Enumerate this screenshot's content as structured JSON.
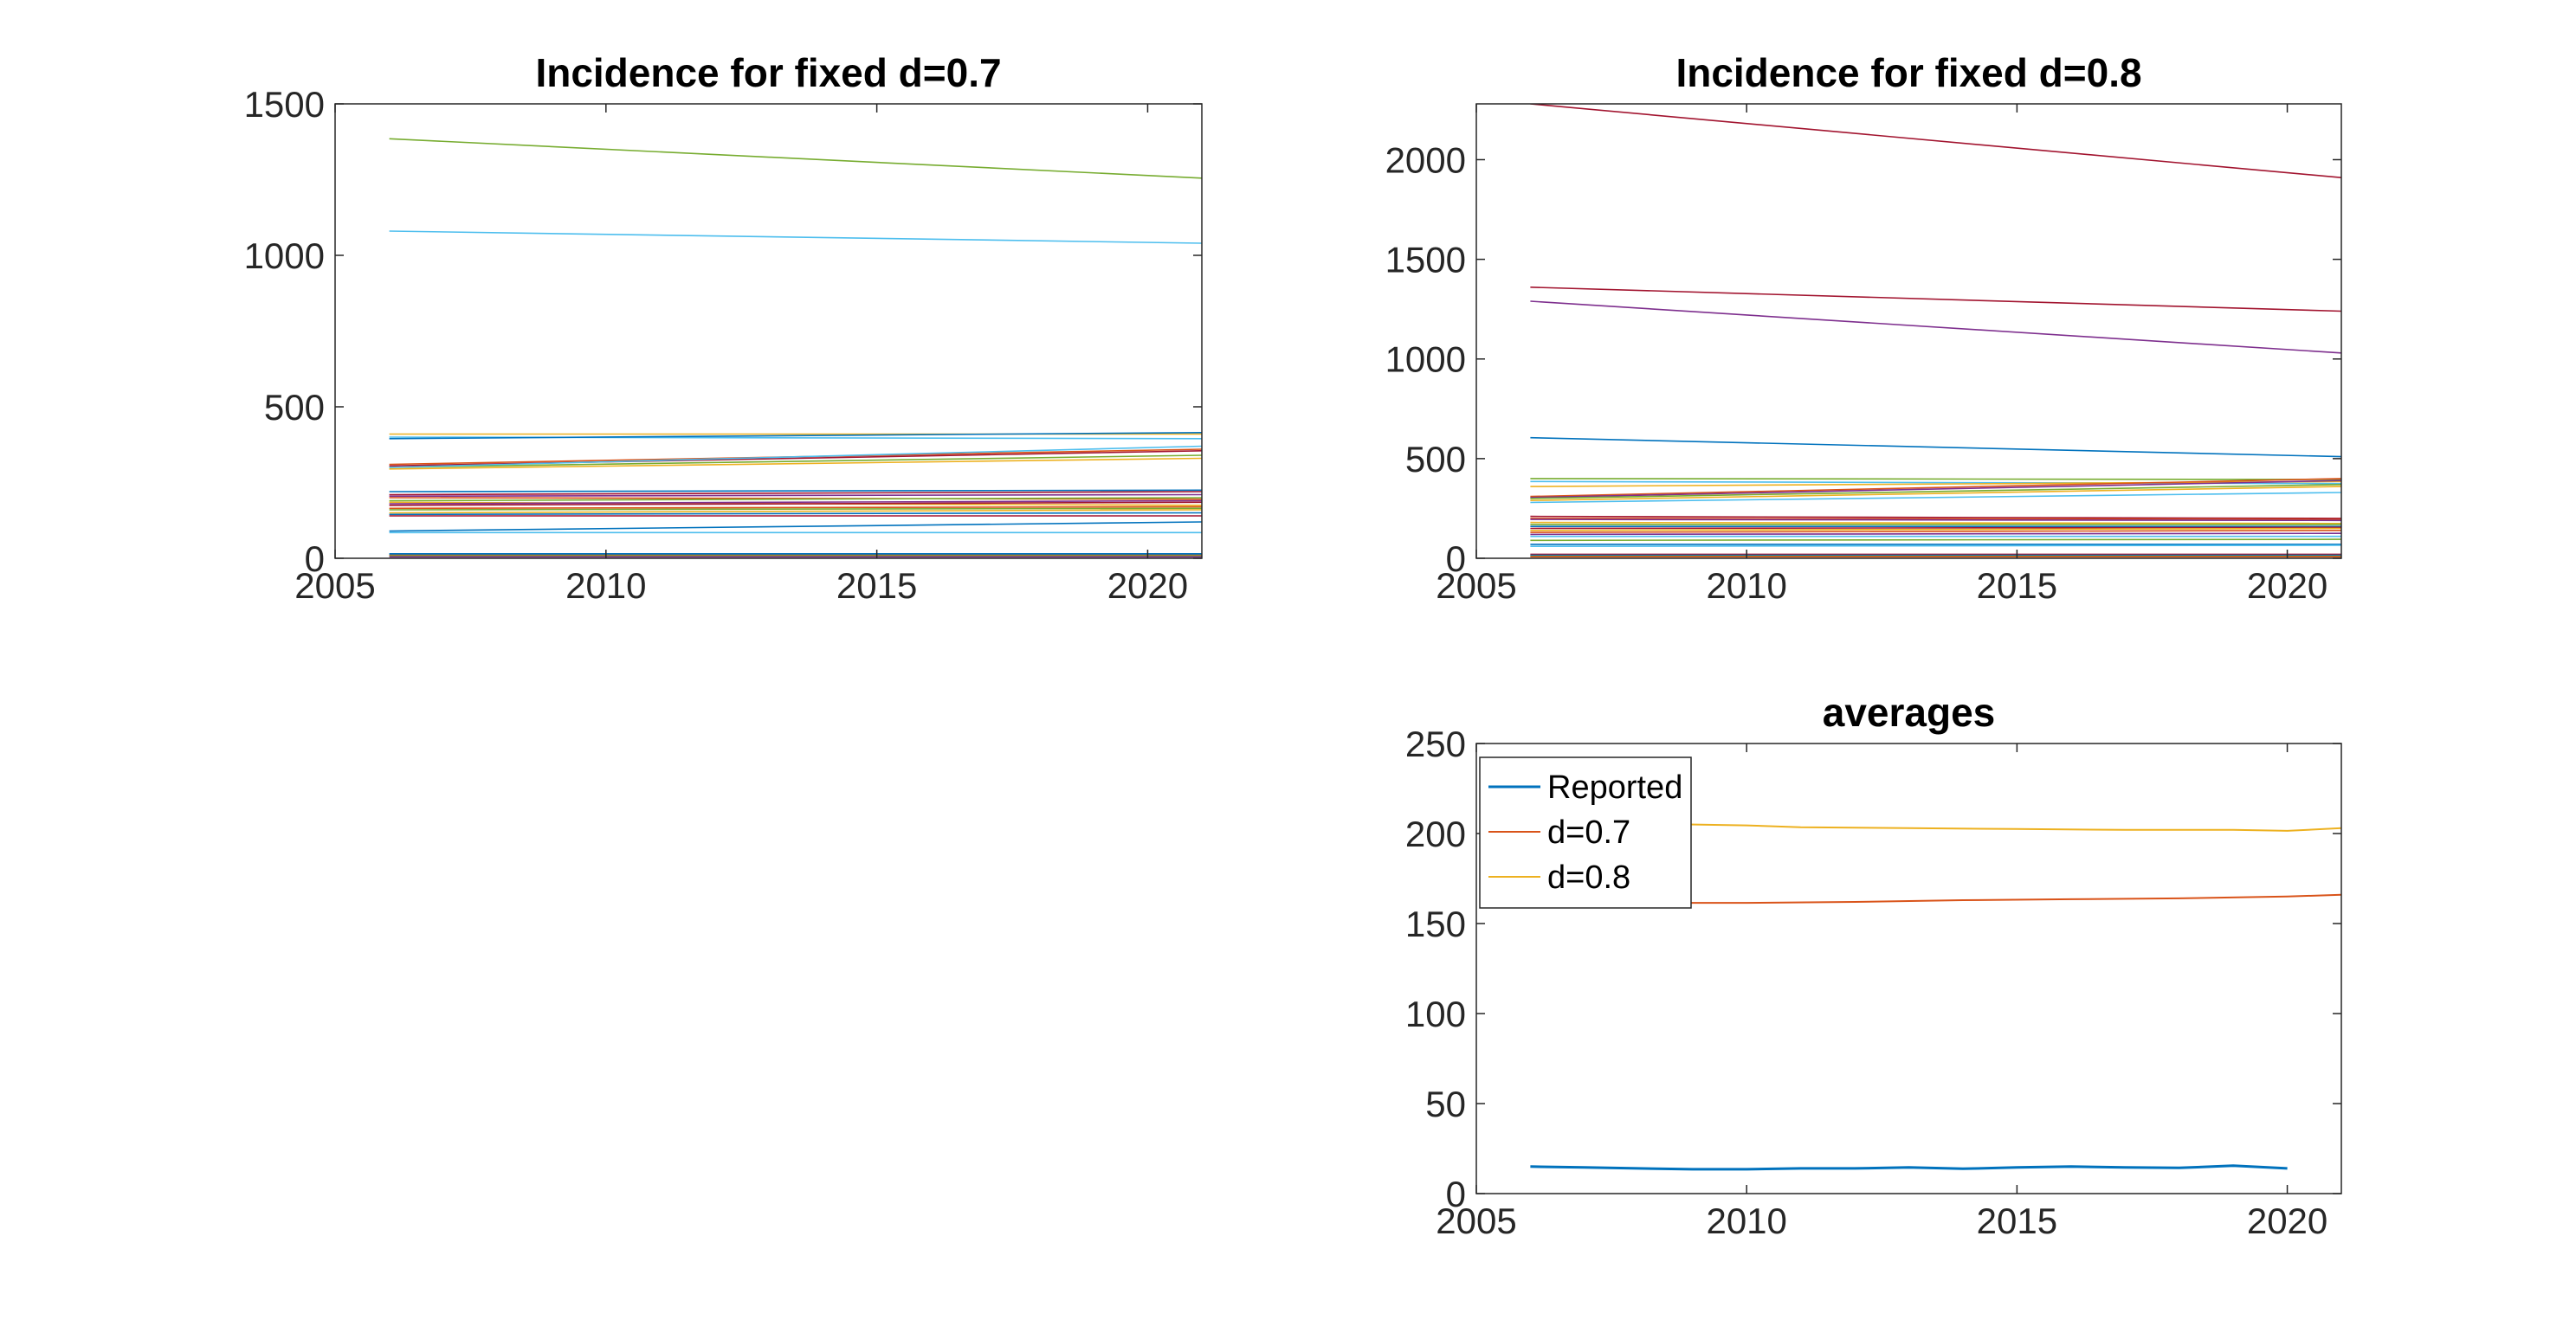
{
  "figure": {
    "background": "#ffffff",
    "axis_color": "#262626",
    "palette": [
      "#0072BD",
      "#D95319",
      "#EDB120",
      "#7E2F8E",
      "#77AC30",
      "#4DBEEE",
      "#A2142F"
    ]
  },
  "chart_data": [
    {
      "id": "p1",
      "type": "line",
      "title": "Incidence for fixed d=0.7",
      "xlabel": "",
      "ylabel": "",
      "xlim": [
        2005,
        2021
      ],
      "ylim": [
        0,
        1500
      ],
      "xticks": [
        2005,
        2010,
        2015,
        2020
      ],
      "yticks": [
        0,
        500,
        1000,
        1500
      ],
      "grid": false,
      "x": [
        2006,
        2021
      ],
      "series": [
        {
          "color": "#77AC30",
          "values": [
            1385,
            1255
          ]
        },
        {
          "color": "#4DBEEE",
          "values": [
            1080,
            1040
          ]
        },
        {
          "color": "#EDB120",
          "values": [
            410,
            410
          ]
        },
        {
          "color": "#4DBEEE",
          "values": [
            400,
            395
          ]
        },
        {
          "color": "#0072BD",
          "values": [
            395,
            415
          ]
        },
        {
          "color": "#D95319",
          "values": [
            310,
            360
          ]
        },
        {
          "color": "#A2142F",
          "values": [
            305,
            355
          ]
        },
        {
          "color": "#77AC30",
          "values": [
            300,
            340
          ]
        },
        {
          "color": "#EDB120",
          "values": [
            295,
            330
          ]
        },
        {
          "color": "#4DBEEE",
          "values": [
            300,
            370
          ]
        },
        {
          "color": "#0072BD",
          "values": [
            220,
            225
          ]
        },
        {
          "color": "#A2142F",
          "values": [
            210,
            220
          ]
        },
        {
          "color": "#7E2F8E",
          "values": [
            205,
            210
          ]
        },
        {
          "color": "#D95319",
          "values": [
            200,
            195
          ]
        },
        {
          "color": "#77AC30",
          "values": [
            190,
            200
          ]
        },
        {
          "color": "#EDB120",
          "values": [
            185,
            175
          ]
        },
        {
          "color": "#7E2F8E",
          "values": [
            180,
            190
          ]
        },
        {
          "color": "#A2142F",
          "values": [
            175,
            185
          ]
        },
        {
          "color": "#D95319",
          "values": [
            165,
            170
          ]
        },
        {
          "color": "#77AC30",
          "values": [
            160,
            165
          ]
        },
        {
          "color": "#EDB120",
          "values": [
            150,
            160
          ]
        },
        {
          "color": "#0072BD",
          "values": [
            145,
            150
          ]
        },
        {
          "color": "#A2142F",
          "values": [
            140,
            140
          ]
        },
        {
          "color": "#0072BD",
          "values": [
            90,
            120
          ]
        },
        {
          "color": "#4DBEEE",
          "values": [
            85,
            85
          ]
        },
        {
          "color": "#0072BD",
          "values": [
            15,
            15
          ]
        },
        {
          "color": "#0072BD",
          "values": [
            12,
            12
          ]
        },
        {
          "color": "#D95319",
          "values": [
            10,
            10
          ]
        },
        {
          "color": "#77AC30",
          "values": [
            8,
            8
          ]
        },
        {
          "color": "#7E2F8E",
          "values": [
            5,
            5
          ]
        }
      ]
    },
    {
      "id": "p2",
      "type": "line",
      "title": "Incidence for fixed d=0.8",
      "xlabel": "",
      "ylabel": "",
      "xlim": [
        2005,
        2021
      ],
      "ylim": [
        0,
        2280
      ],
      "xticks": [
        2005,
        2010,
        2015,
        2020
      ],
      "yticks": [
        0,
        500,
        1000,
        1500,
        2000
      ],
      "grid": false,
      "x": [
        2006,
        2021
      ],
      "series": [
        {
          "color": "#A2142F",
          "values": [
            2280,
            1910
          ]
        },
        {
          "color": "#A2142F",
          "values": [
            1360,
            1240
          ]
        },
        {
          "color": "#7E2F8E",
          "values": [
            1290,
            1030
          ]
        },
        {
          "color": "#0072BD",
          "values": [
            605,
            510
          ]
        },
        {
          "color": "#77AC30",
          "values": [
            400,
            395
          ]
        },
        {
          "color": "#4DBEEE",
          "values": [
            385,
            375
          ]
        },
        {
          "color": "#EDB120",
          "values": [
            360,
            385
          ]
        },
        {
          "color": "#D95319",
          "values": [
            310,
            400
          ]
        },
        {
          "color": "#7E2F8E",
          "values": [
            305,
            390
          ]
        },
        {
          "color": "#77AC30",
          "values": [
            300,
            370
          ]
        },
        {
          "color": "#EDB120",
          "values": [
            290,
            360
          ]
        },
        {
          "color": "#4DBEEE",
          "values": [
            280,
            330
          ]
        },
        {
          "color": "#A2142F",
          "values": [
            210,
            200
          ]
        },
        {
          "color": "#D95319",
          "values": [
            200,
            195
          ]
        },
        {
          "color": "#7E2F8E",
          "values": [
            195,
            190
          ]
        },
        {
          "color": "#EDB120",
          "values": [
            180,
            175
          ]
        },
        {
          "color": "#77AC30",
          "values": [
            170,
            170
          ]
        },
        {
          "color": "#0072BD",
          "values": [
            160,
            160
          ]
        },
        {
          "color": "#A2142F",
          "values": [
            150,
            155
          ]
        },
        {
          "color": "#EDB120",
          "values": [
            140,
            150
          ]
        },
        {
          "color": "#D95319",
          "values": [
            130,
            140
          ]
        },
        {
          "color": "#7E2F8E",
          "values": [
            120,
            125
          ]
        },
        {
          "color": "#4DBEEE",
          "values": [
            110,
            110
          ]
        },
        {
          "color": "#77AC30",
          "values": [
            90,
            95
          ]
        },
        {
          "color": "#0072BD",
          "values": [
            70,
            70
          ]
        },
        {
          "color": "#4DBEEE",
          "values": [
            60,
            65
          ]
        },
        {
          "color": "#A2142F",
          "values": [
            20,
            20
          ]
        },
        {
          "color": "#0072BD",
          "values": [
            15,
            15
          ]
        },
        {
          "color": "#77AC30",
          "values": [
            10,
            10
          ]
        },
        {
          "color": "#D95319",
          "values": [
            8,
            8
          ]
        }
      ]
    },
    {
      "id": "p3",
      "type": "line",
      "title": "averages",
      "xlabel": "",
      "ylabel": "",
      "xlim": [
        2005,
        2021
      ],
      "ylim": [
        0,
        250
      ],
      "xticks": [
        2005,
        2010,
        2015,
        2020
      ],
      "yticks": [
        0,
        50,
        100,
        150,
        200,
        250
      ],
      "grid": false,
      "legend_position": "top-left",
      "series": [
        {
          "name": "Reported",
          "color": "#0072BD",
          "width": 3,
          "x": [
            2006,
            2007,
            2008,
            2009,
            2010,
            2011,
            2012,
            2013,
            2014,
            2015,
            2016,
            2017,
            2018,
            2019,
            2020
          ],
          "values": [
            15,
            14.5,
            14,
            13.5,
            13.5,
            14,
            14,
            14.5,
            13.8,
            14.5,
            15,
            14.5,
            14.3,
            15.5,
            14
          ]
        },
        {
          "name": "d=0.7",
          "color": "#D95319",
          "width": 2,
          "x": [
            2006,
            2008,
            2010,
            2012,
            2014,
            2016,
            2018,
            2020,
            2021
          ],
          "values": [
            162,
            161.5,
            161.5,
            162,
            163,
            163.5,
            164,
            165,
            166
          ]
        },
        {
          "name": "d=0.8",
          "color": "#EDB120",
          "width": 2,
          "x": [
            2006,
            2008,
            2010,
            2011,
            2013,
            2015,
            2017,
            2019,
            2020,
            2021
          ],
          "values": [
            206,
            205.5,
            204.5,
            203.5,
            203,
            202.5,
            202,
            202,
            201.5,
            203
          ]
        }
      ]
    }
  ]
}
